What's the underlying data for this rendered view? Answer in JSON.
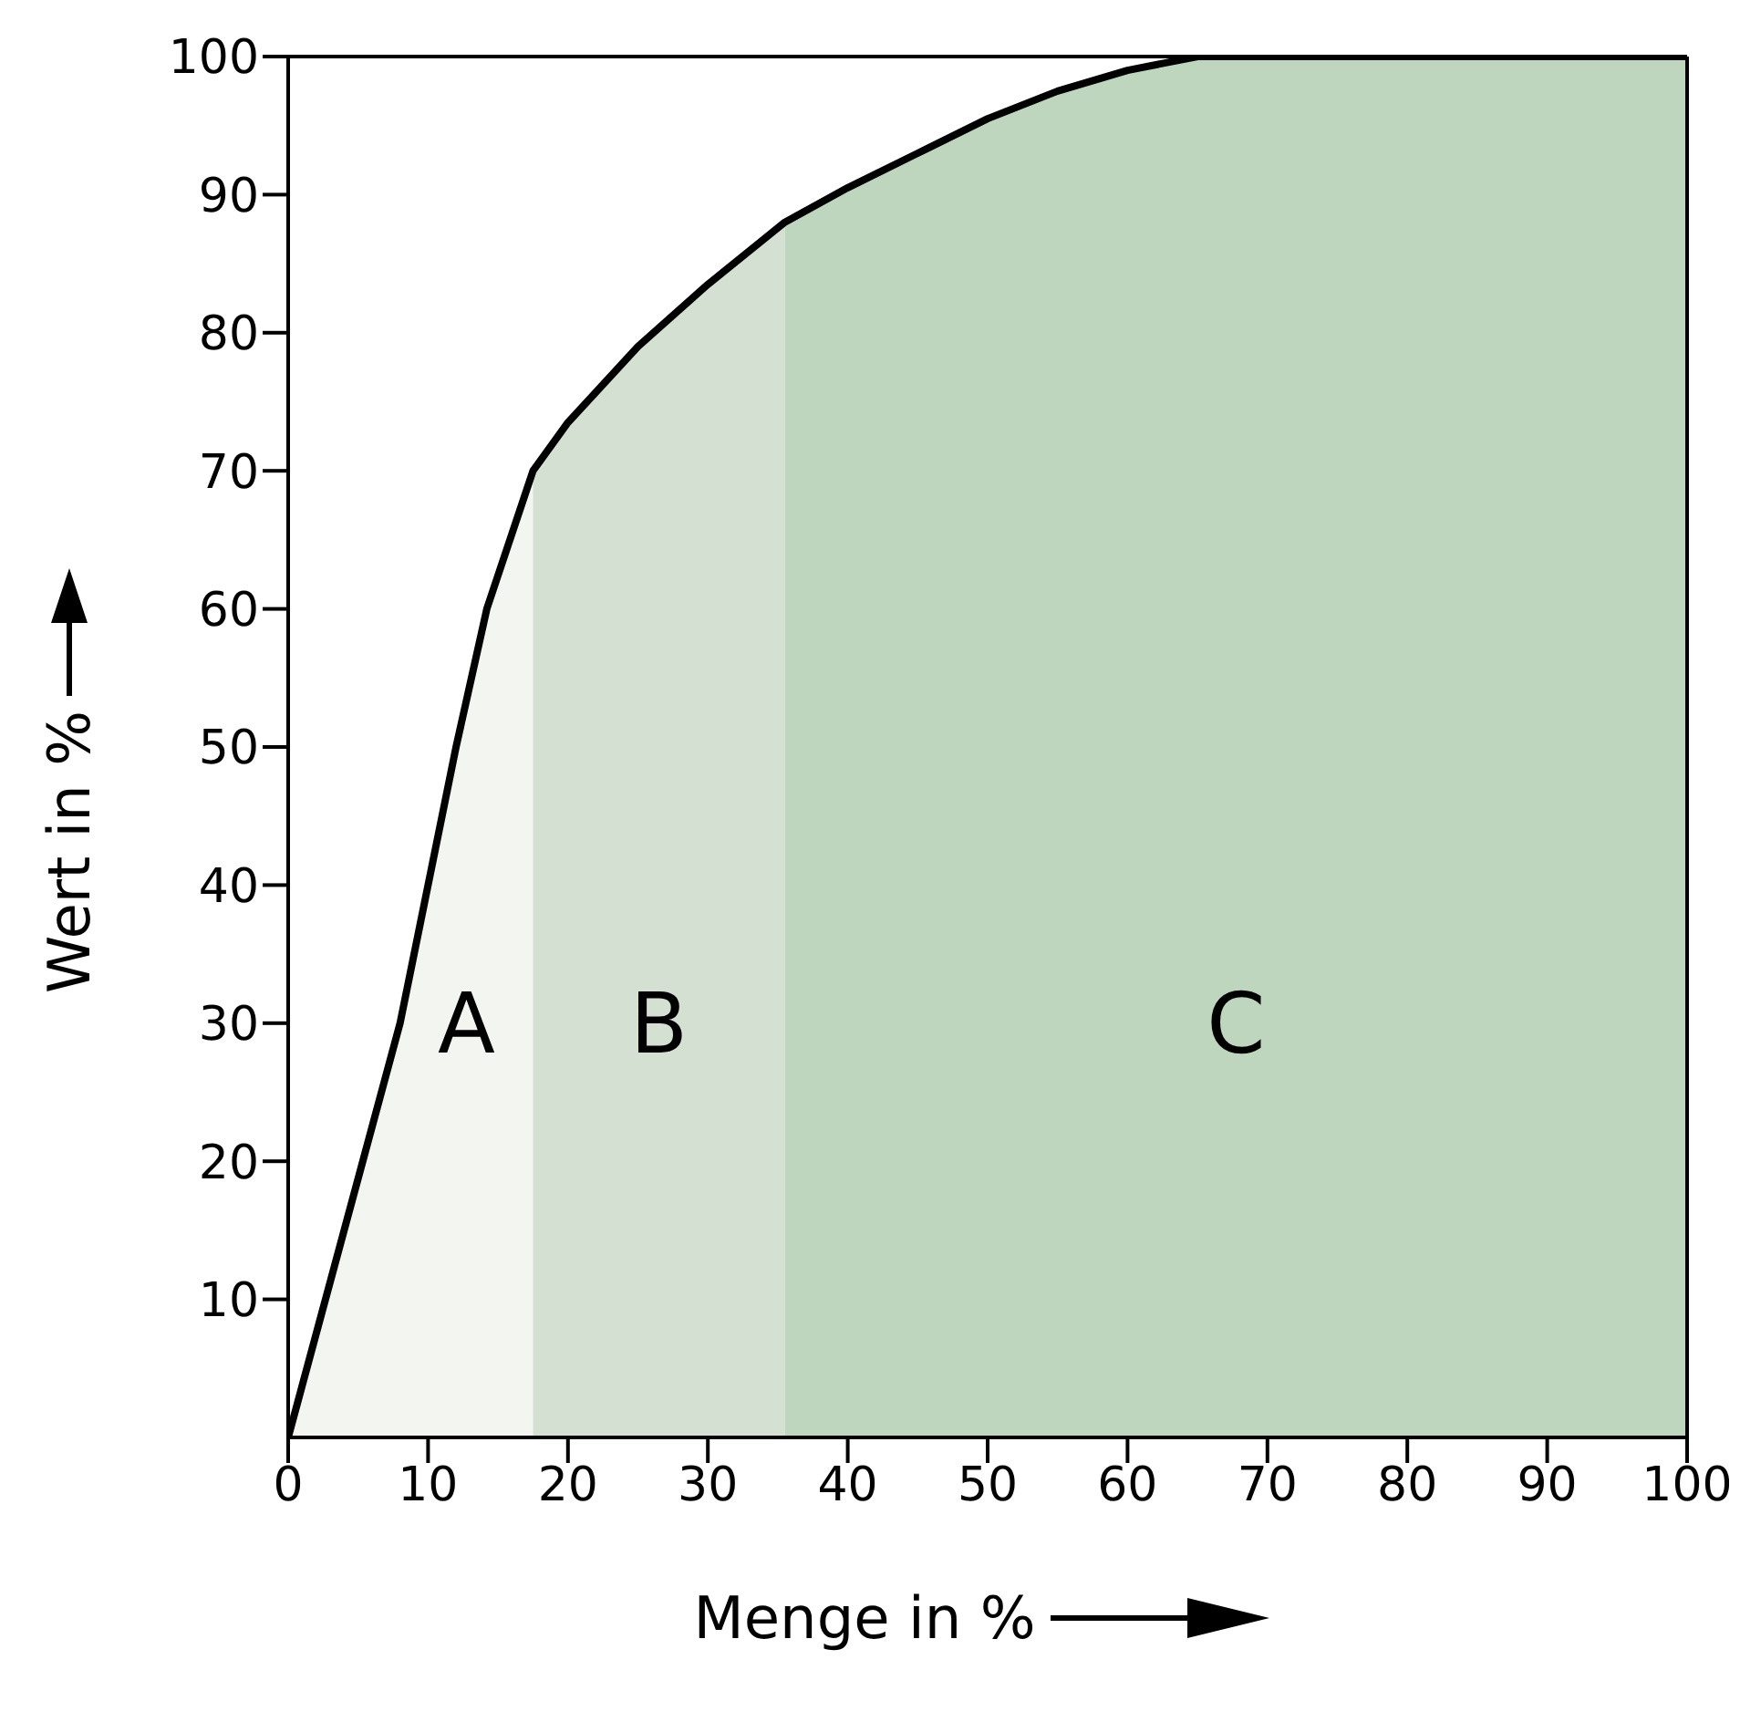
{
  "chart_data": {
    "type": "area",
    "xlabel": "Menge in %",
    "ylabel": "Wert in %",
    "xlim": [
      0,
      100
    ],
    "ylim": [
      0,
      100
    ],
    "xticks": [
      0,
      10,
      20,
      30,
      40,
      50,
      60,
      70,
      80,
      90,
      100
    ],
    "yticks": [
      10,
      20,
      30,
      40,
      50,
      60,
      70,
      80,
      90,
      100
    ],
    "series": [
      {
        "color": "#f3f5f1",
        "x": [
          0,
          8,
          12,
          14.2,
          17.5
        ],
        "values": [
          0,
          30,
          50,
          60,
          70
        ]
      },
      {
        "color": "#d3e0d2",
        "x": [
          17.5,
          20,
          25,
          30,
          35.5
        ],
        "values": [
          70,
          73.5,
          79,
          83.5,
          88
        ]
      },
      {
        "color": "#bed6bd",
        "x": [
          35.5,
          40,
          45,
          50,
          55,
          60,
          65,
          100
        ],
        "values": [
          88,
          90.5,
          93,
          95.5,
          97.5,
          99,
          100,
          100
        ]
      },
      {
        "type": "line",
        "color": "#000000",
        "x": [
          0,
          8,
          12,
          14.2,
          17.5,
          20,
          25,
          30,
          35.5,
          40,
          45,
          50,
          55,
          60,
          65,
          100
        ],
        "values": [
          0,
          30,
          50,
          60,
          70,
          73.5,
          79,
          83.5,
          88,
          90.5,
          93,
          95.5,
          97.5,
          99,
          100,
          100
        ]
      }
    ],
    "annotations": [
      "A",
      "B",
      "C"
    ]
  }
}
